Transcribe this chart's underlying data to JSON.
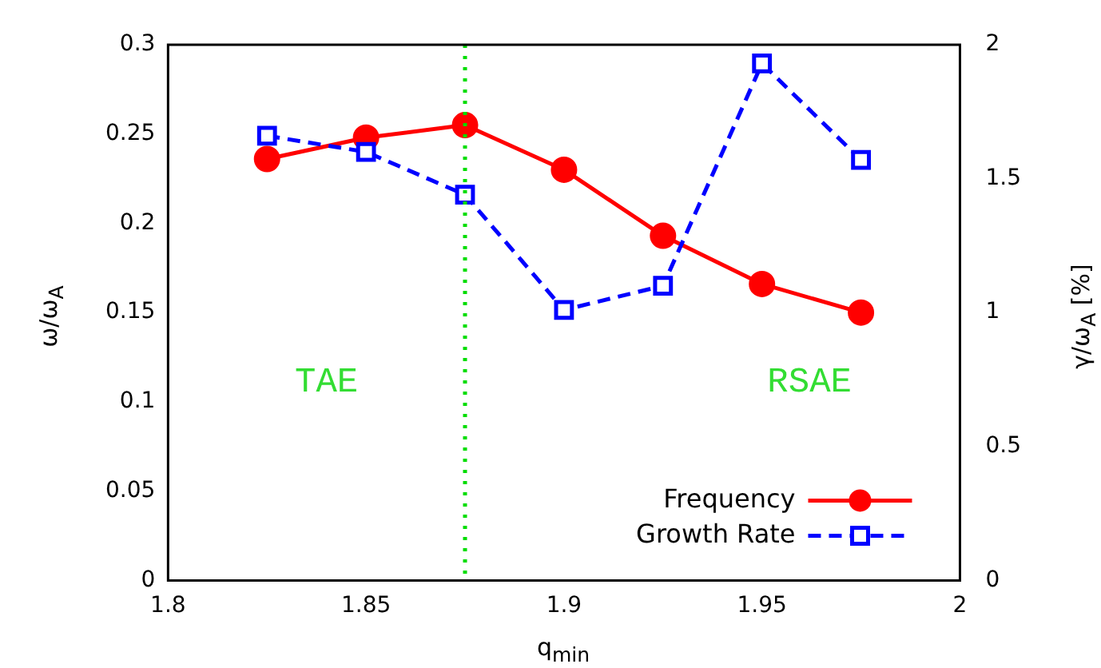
{
  "chart_data": {
    "type": "line",
    "xlabel": "q$_{min}$",
    "ylabel": "ω/ω$_{A}$",
    "y2label": "γ/ω$_{A}$ [%]",
    "x": [
      1.825,
      1.85,
      1.875,
      1.9,
      1.925,
      1.95,
      1.975
    ],
    "series": [
      {
        "name": "Frequency",
        "color": "#ff0000",
        "marker": "circle",
        "line_style": "solid",
        "values": [
          0.236,
          0.248,
          0.255,
          0.23,
          0.193,
          0.166,
          0.15
        ]
      },
      {
        "name": "Growth Rate",
        "color": "#0000ff",
        "marker": "square",
        "line_style": "dashed",
        "axis": "y2",
        "values": [
          1.66,
          1.6,
          1.44,
          1.01,
          1.1,
          1.93,
          1.57
        ]
      }
    ],
    "xlim": [
      1.8,
      2
    ],
    "xticks": [
      1.8,
      1.85,
      1.9,
      1.95,
      2
    ],
    "ylim": [
      0,
      0.3
    ],
    "yticks": [
      0,
      0.05,
      0.1,
      0.15,
      0.2,
      0.25,
      0.3
    ],
    "y2lim": [
      0,
      2
    ],
    "y2ticks": [
      0,
      0.5,
      1,
      1.5,
      2
    ],
    "ref_lines": [
      {
        "axis": "x",
        "value": 1.875,
        "color": "#00dd00",
        "line_style": "dotted"
      }
    ],
    "annotations": [
      "TAE",
      "RSAE"
    ],
    "legend": "bottom right",
    "grid": false
  }
}
